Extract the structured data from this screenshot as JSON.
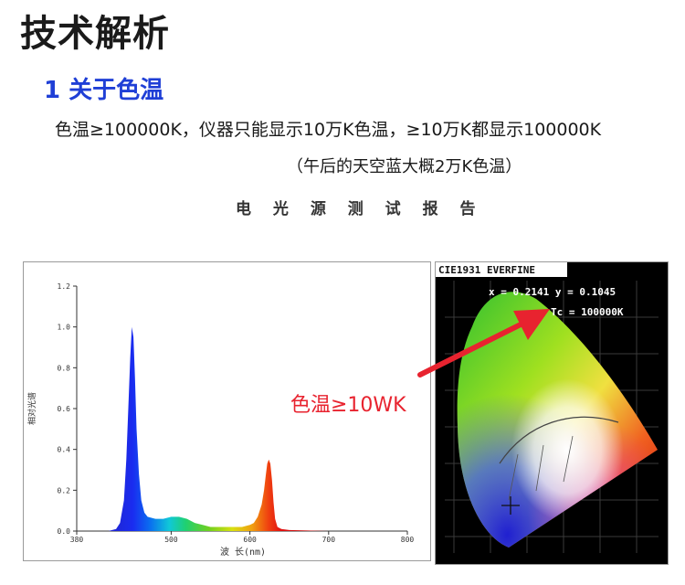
{
  "header": {
    "title": "技术解析",
    "section": "1 关于色温",
    "line1": "色温≥100000K，仪器只能显示10万K色温，≥10万K都显示100000K",
    "line2": "（午后的天空蓝大概2万K色温）",
    "report_title": "电 光 源 测 试 报 告"
  },
  "annotation": {
    "label": "色温≥10WK",
    "color": "#e8232f"
  },
  "cie": {
    "header": "CIE1931 EVERFINE",
    "xy": "x = 0.2141 y = 0.1045",
    "tc": "Tc = 100000K"
  },
  "chart_data": {
    "type": "line",
    "xlabel": "波 长(nm)",
    "ylabel": "相对光谱",
    "xlim": [
      380,
      800
    ],
    "ylim": [
      0.0,
      1.2
    ],
    "x_ticks": [
      "380",
      "500",
      "600",
      "700",
      "800"
    ],
    "y_ticks": [
      "0.0",
      "0.2",
      "0.4",
      "0.6",
      "0.8",
      "1.0",
      "1.2"
    ],
    "series": [
      {
        "x": [
          380,
          420,
          430,
          435,
          440,
          443,
          446,
          448,
          450,
          452,
          454,
          456,
          459,
          462,
          466,
          470,
          480,
          490,
          500,
          510,
          520,
          530,
          540,
          550,
          560,
          570,
          580,
          590,
          600,
          605,
          610,
          615,
          618,
          620,
          622,
          624,
          626,
          628,
          630,
          632,
          635,
          640,
          650,
          700,
          750,
          800
        ],
        "y": [
          0.0,
          0.0,
          0.01,
          0.04,
          0.15,
          0.35,
          0.65,
          0.85,
          1.0,
          0.95,
          0.75,
          0.5,
          0.28,
          0.15,
          0.09,
          0.07,
          0.06,
          0.06,
          0.07,
          0.07,
          0.06,
          0.04,
          0.03,
          0.02,
          0.02,
          0.02,
          0.02,
          0.02,
          0.03,
          0.04,
          0.07,
          0.13,
          0.2,
          0.27,
          0.33,
          0.35,
          0.33,
          0.25,
          0.14,
          0.06,
          0.02,
          0.01,
          0.005,
          0.0,
          0.0,
          0.0
        ]
      }
    ]
  }
}
